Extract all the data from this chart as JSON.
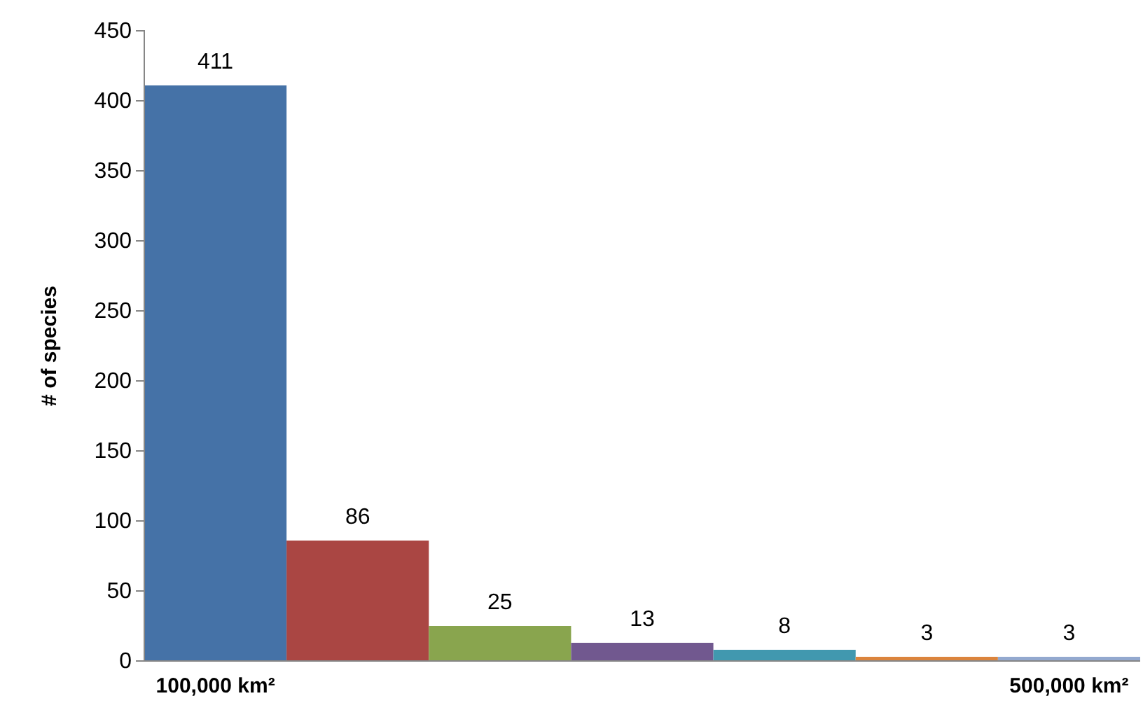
{
  "chart_data": {
    "type": "bar",
    "ylabel": "# of species",
    "categories": [
      "100,000 km²",
      null,
      null,
      null,
      null,
      null,
      "500,000 km²"
    ],
    "values": [
      411,
      86,
      25,
      13,
      8,
      3,
      3
    ],
    "colors": [
      "#4572a7",
      "#aa4643",
      "#89a54e",
      "#71588f",
      "#4198af",
      "#db843d",
      "#93a9cf"
    ],
    "ylim": [
      0,
      450
    ],
    "yticks": [
      0,
      50,
      100,
      150,
      200,
      250,
      300,
      350,
      400,
      450
    ],
    "data_labels": true,
    "grid": false
  }
}
